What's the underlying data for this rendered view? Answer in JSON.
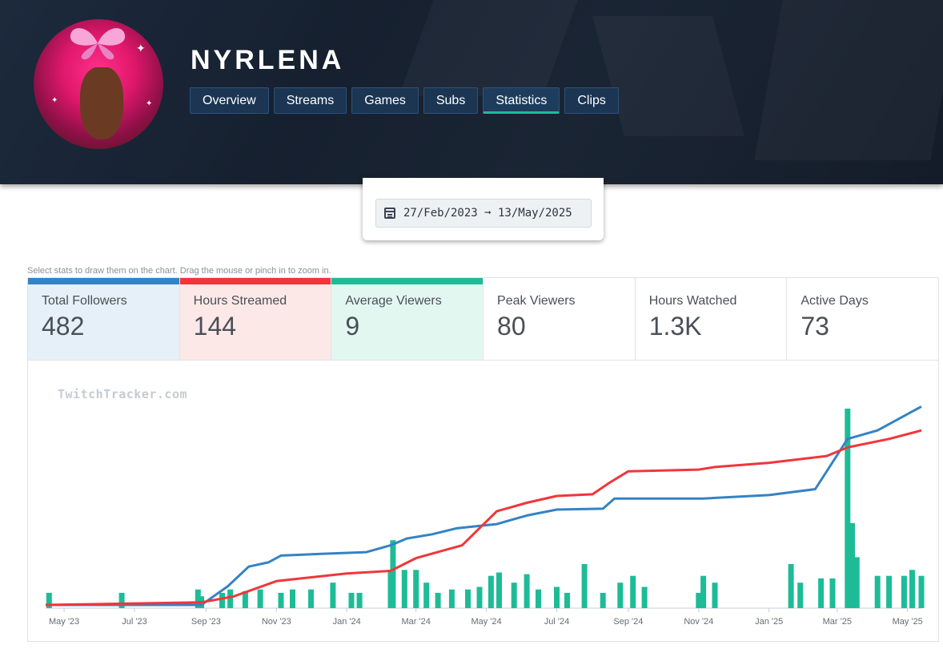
{
  "channel": {
    "name": "NYRLENA"
  },
  "tabs": [
    {
      "label": "Overview"
    },
    {
      "label": "Streams"
    },
    {
      "label": "Games"
    },
    {
      "label": "Subs"
    },
    {
      "label": "Statistics"
    },
    {
      "label": "Clips"
    }
  ],
  "date_range": {
    "text": "27/Feb/2023 ➞ 13/May/2025"
  },
  "hint": "Select stats to draw them on the chart. Drag the mouse or pinch in to zoom in.",
  "stats": [
    {
      "label": "Total Followers",
      "value": "482",
      "color": "#3483c4",
      "bg": "#e6f0f8"
    },
    {
      "label": "Hours Streamed",
      "value": "144",
      "color": "#f0363b",
      "bg": "#fde8e8"
    },
    {
      "label": "Average Viewers",
      "value": "9",
      "color": "#1dbc97",
      "bg": "#e3f7f1"
    },
    {
      "label": "Peak Viewers",
      "value": "80"
    },
    {
      "label": "Hours Watched",
      "value": "1.3K"
    },
    {
      "label": "Active Days",
      "value": "73"
    }
  ],
  "chart": {
    "watermark": "TwitchTracker.com",
    "chart_data": {
      "type": "line",
      "x_ticks": [
        "May '23",
        "Jul '23",
        "Sep '23",
        "Nov '23",
        "Jan '24",
        "Mar '24",
        "May '24",
        "Jul '24",
        "Sep '24",
        "Nov '24",
        "Jan '25",
        "Mar '25",
        "May '25"
      ],
      "series": [
        {
          "name": "Total Followers",
          "type": "line",
          "color": "#3483c4",
          "points": [
            [
              "2023-04-15",
              0
            ],
            [
              "2023-08-28",
              0
            ],
            [
              "2023-09-20",
              22
            ],
            [
              "2023-10-08",
              45
            ],
            [
              "2023-10-25",
              50
            ],
            [
              "2023-11-05",
              58
            ],
            [
              "2023-12-10",
              60
            ],
            [
              "2024-01-18",
              62
            ],
            [
              "2024-02-08",
              70
            ],
            [
              "2024-02-22",
              78
            ],
            [
              "2024-03-15",
              83
            ],
            [
              "2024-04-05",
              90
            ],
            [
              "2024-05-10",
              95
            ],
            [
              "2024-06-05",
              105
            ],
            [
              "2024-07-01",
              112
            ],
            [
              "2024-08-10",
              113
            ],
            [
              "2024-08-20",
              125
            ],
            [
              "2024-09-20",
              125
            ],
            [
              "2024-11-05",
              125
            ],
            [
              "2025-01-01",
              129
            ],
            [
              "2025-02-10",
              136
            ],
            [
              "2025-03-10",
              195
            ],
            [
              "2025-04-05",
              205
            ],
            [
              "2025-05-13",
              233
            ]
          ]
        },
        {
          "name": "Hours Streamed",
          "type": "line",
          "color": "#f0363b",
          "points": [
            [
              "2023-04-15",
              0
            ],
            [
              "2023-08-28",
              3
            ],
            [
              "2023-09-25",
              10
            ],
            [
              "2023-11-01",
              28
            ],
            [
              "2024-01-01",
              37
            ],
            [
              "2024-02-08",
              40
            ],
            [
              "2024-03-01",
              55
            ],
            [
              "2024-04-10",
              70
            ],
            [
              "2024-05-10",
              110
            ],
            [
              "2024-06-05",
              120
            ],
            [
              "2024-07-01",
              128
            ],
            [
              "2024-08-01",
              130
            ],
            [
              "2024-08-15",
              143
            ],
            [
              "2024-09-01",
              157
            ],
            [
              "2024-11-01",
              159
            ],
            [
              "2024-11-15",
              162
            ],
            [
              "2025-01-01",
              167
            ],
            [
              "2025-02-20",
              175
            ],
            [
              "2025-03-10",
              185
            ],
            [
              "2025-04-15",
              195
            ],
            [
              "2025-05-13",
              205
            ]
          ]
        },
        {
          "name": "Average Viewers",
          "type": "bar",
          "color": "#1dbc97",
          "points": [
            [
              "2023-04-18",
              18
            ],
            [
              "2023-06-20",
              18
            ],
            [
              "2023-08-25",
              22
            ],
            [
              "2023-08-28",
              14
            ],
            [
              "2023-09-15",
              18
            ],
            [
              "2023-09-22",
              22
            ],
            [
              "2023-10-05",
              20
            ],
            [
              "2023-10-18",
              22
            ],
            [
              "2023-11-05",
              18
            ],
            [
              "2023-11-15",
              22
            ],
            [
              "2023-12-01",
              22
            ],
            [
              "2023-12-20",
              30
            ],
            [
              "2024-01-05",
              18
            ],
            [
              "2024-01-12",
              18
            ],
            [
              "2024-02-08",
              45
            ],
            [
              "2024-02-10",
              80
            ],
            [
              "2024-02-20",
              45
            ],
            [
              "2024-03-01",
              45
            ],
            [
              "2024-03-10",
              30
            ],
            [
              "2024-03-20",
              18
            ],
            [
              "2024-04-01",
              22
            ],
            [
              "2024-04-15",
              22
            ],
            [
              "2024-04-25",
              25
            ],
            [
              "2024-05-05",
              38
            ],
            [
              "2024-05-12",
              42
            ],
            [
              "2024-05-25",
              30
            ],
            [
              "2024-06-05",
              40
            ],
            [
              "2024-06-15",
              22
            ],
            [
              "2024-07-01",
              25
            ],
            [
              "2024-07-10",
              18
            ],
            [
              "2024-07-25",
              52
            ],
            [
              "2024-08-10",
              18
            ],
            [
              "2024-08-25",
              30
            ],
            [
              "2024-09-05",
              38
            ],
            [
              "2024-09-15",
              25
            ],
            [
              "2024-11-01",
              18
            ],
            [
              "2024-11-05",
              38
            ],
            [
              "2024-11-15",
              30
            ],
            [
              "2025-01-20",
              52
            ],
            [
              "2025-01-28",
              30
            ],
            [
              "2025-02-15",
              35
            ],
            [
              "2025-02-25",
              35
            ],
            [
              "2025-03-10",
              235
            ],
            [
              "2025-03-14",
              100
            ],
            [
              "2025-03-18",
              60
            ],
            [
              "2025-04-05",
              38
            ],
            [
              "2025-04-15",
              38
            ],
            [
              "2025-04-28",
              38
            ],
            [
              "2025-05-05",
              45
            ],
            [
              "2025-05-13",
              38
            ]
          ]
        }
      ]
    }
  }
}
